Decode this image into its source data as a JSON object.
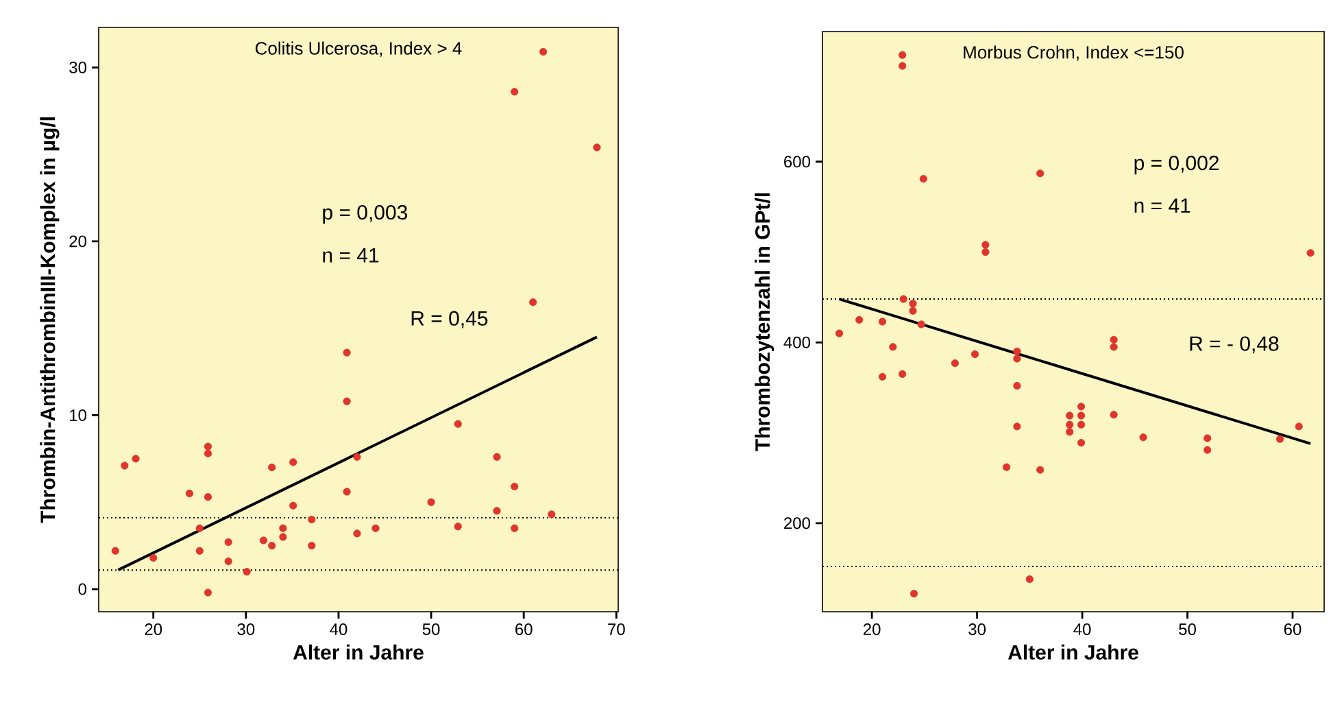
{
  "chart_data": [
    {
      "type": "scatter",
      "title": "Colitis Ulcerosa, Index > 4",
      "xlabel": "Alter in Jahre",
      "ylabel": "Thrombin-AntithrombinIII-Komplex in µg/l",
      "annotations": [
        "p = 0,003",
        "n = 41",
        "R = 0,45"
      ],
      "xlim": [
        14.1,
        70.2
      ],
      "ylim": [
        -1.3,
        32.3
      ],
      "xticks": [
        20,
        30,
        40,
        50,
        60,
        70
      ],
      "yticks": [
        0,
        10,
        20,
        30
      ],
      "grid": false,
      "ref_lines": [
        {
          "axis": "y",
          "value": 4.1,
          "color": "#000000",
          "line_style": "dotted"
        },
        {
          "axis": "y",
          "value": 1.1,
          "color": "#000000",
          "line_style": "dotted"
        }
      ],
      "series": [
        {
          "type": "scatter",
          "marker": "circle",
          "color": "#e0352b",
          "x": [
            15.9,
            16.9,
            18.1,
            20,
            23.9,
            25,
            25,
            25.9,
            25.9,
            25.9,
            25.9,
            28.1,
            28.1,
            30.1,
            31.9,
            32.8,
            32.8,
            34,
            34,
            35.1,
            35.1,
            37.1,
            37.1,
            40.9,
            40.9,
            40.9,
            42,
            42,
            44,
            50,
            52.9,
            52.9,
            57.1,
            57.1,
            59,
            59,
            63,
            59,
            62.1,
            67.9,
            61
          ],
          "values": [
            2.2,
            7.1,
            7.5,
            1.8,
            5.5,
            3.5,
            2.2,
            8.2,
            7.8,
            5.3,
            -0.2,
            2.7,
            1.6,
            1.0,
            2.8,
            2.5,
            7.0,
            3.5,
            3.0,
            7.3,
            4.8,
            4.0,
            2.5,
            13.6,
            10.8,
            5.6,
            7.6,
            3.2,
            3.5,
            5.0,
            9.5,
            3.6,
            7.6,
            4.5,
            5.9,
            3.5,
            4.3,
            28.6,
            30.9,
            25.4,
            16.5
          ]
        },
        {
          "type": "line",
          "color": "#000000",
          "marker": "none",
          "x": [
            16.2,
            67.9
          ],
          "values": [
            1.1,
            14.5
          ]
        }
      ]
    },
    {
      "type": "scatter",
      "title": "Morbus Crohn, Index <=150",
      "xlabel": "Alter in Jahre",
      "ylabel": "Thrombozytenzahl in GPt/l",
      "annotations": [
        "p = 0,002",
        "n = 41",
        "R = - 0,48"
      ],
      "xlim": [
        15.3,
        63
      ],
      "ylim": [
        102,
        744
      ],
      "xticks": [
        20,
        30,
        40,
        50,
        60
      ],
      "yticks": [
        200,
        400,
        600
      ],
      "grid": false,
      "ref_lines": [
        {
          "axis": "y",
          "value": 448,
          "color": "#000000",
          "line_style": "dotted"
        },
        {
          "axis": "y",
          "value": 152,
          "color": "#000000",
          "line_style": "dotted"
        }
      ],
      "series": [
        {
          "type": "scatter",
          "marker": "circle",
          "color": "#e0352b",
          "x": [
            22.9,
            22.9,
            24.9,
            36,
            30.8,
            30.8,
            61.7,
            23,
            23.9,
            23.9,
            16.9,
            18.8,
            21,
            24.7,
            43,
            43,
            22,
            21,
            22.9,
            27.9,
            29.8,
            33.8,
            33.8,
            33.8,
            33.8,
            32.8,
            36,
            38.8,
            38.8,
            38.8,
            39.9,
            39.9,
            39.9,
            39.9,
            43,
            45.8,
            51.9,
            51.9,
            58.8,
            60.6,
            35,
            24
          ],
          "values": [
            718,
            706,
            581,
            587,
            508,
            500,
            499,
            448,
            443,
            435,
            410,
            425,
            423,
            420,
            403,
            395,
            395,
            362,
            365,
            377,
            387,
            390,
            382,
            352,
            307,
            262,
            259,
            319,
            309,
            301,
            329,
            319,
            309,
            289,
            320,
            295,
            294,
            281,
            293,
            307,
            138,
            122
          ]
        },
        {
          "type": "line",
          "color": "#000000",
          "marker": "none",
          "x": [
            16.9,
            61.7
          ],
          "values": [
            448,
            288
          ]
        }
      ]
    }
  ]
}
